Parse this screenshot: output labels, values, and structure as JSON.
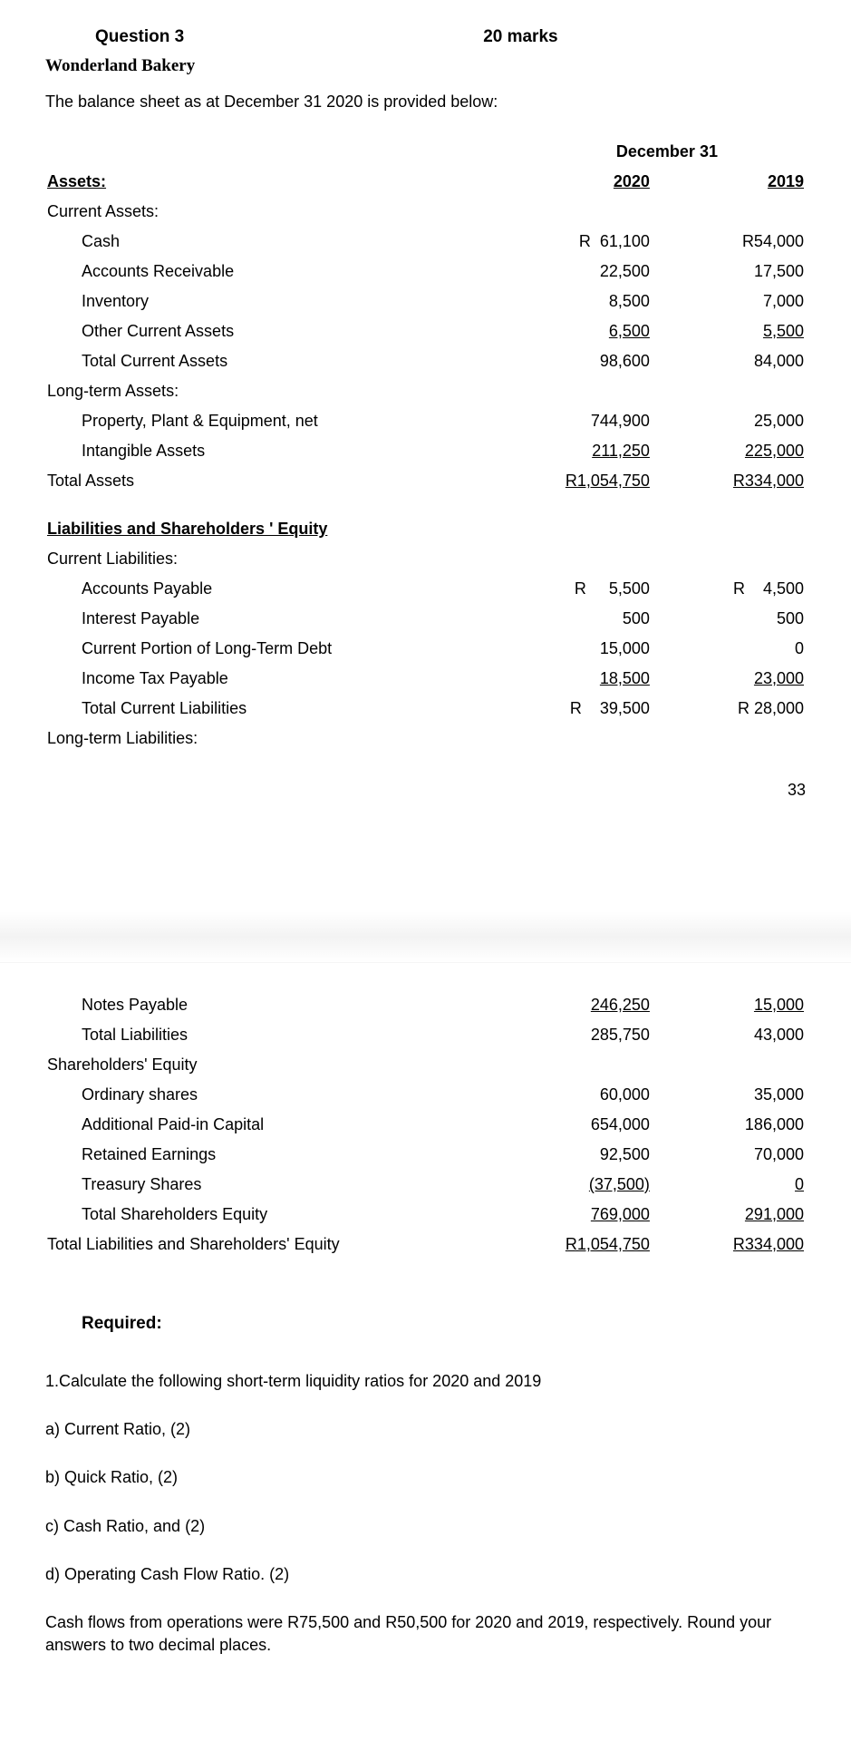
{
  "header": {
    "question": "Question 3",
    "marks": "20 marks",
    "company": "Wonderland Bakery",
    "intro": "The balance sheet as at December 31 2020 is provided below:"
  },
  "bs": {
    "date_header": "December 31",
    "year1": "2020",
    "year2": "2019",
    "assets_head": "Assets:",
    "curr_assets_head": "Current Assets:",
    "rows_ca": [
      {
        "label": "Cash",
        "v1": "R  61,100",
        "v2": "R54,000",
        "u": false
      },
      {
        "label": "Accounts Receivable",
        "v1": "22,500",
        "v2": "17,500",
        "u": false
      },
      {
        "label": "Inventory",
        "v1": "8,500",
        "v2": "7,000",
        "u": false
      },
      {
        "label": "Other Current Assets",
        "v1": "6,500",
        "v2": "5,500",
        "u": true
      },
      {
        "label": "Total Current Assets",
        "v1": "98,600",
        "v2": "84,000",
        "u": false
      }
    ],
    "lta_head": "Long-term Assets:",
    "rows_lta": [
      {
        "label": "Property, Plant & Equipment, net",
        "v1": "744,900",
        "v2": "25,000",
        "u": false
      },
      {
        "label": "Intangible Assets",
        "v1": "211,250",
        "v2": "225,000",
        "u": true
      }
    ],
    "total_assets": {
      "label": "Total Assets",
      "v1": "R1,054,750",
      "v2": "R334,000"
    },
    "lse_head": "Liabilities and Shareholders ' Equity",
    "curr_liab_head": "Current  Liabilities:",
    "rows_cl": [
      {
        "label": "Accounts Payable",
        "v1": "R     5,500",
        "v2": "R    4,500",
        "u": false
      },
      {
        "label": "Interest Payable",
        "v1": "500",
        "v2": "500",
        "u": false
      },
      {
        "label": "Current Portion of Long-Term Debt",
        "v1": "15,000",
        "v2": "0",
        "u": false
      },
      {
        "label": "Income Tax Payable",
        "v1": "18,500",
        "v2": "23,000",
        "u": true
      },
      {
        "label": "Total Current Liabilities",
        "v1": "R    39,500",
        "v2": "R 28,000",
        "u": false
      }
    ],
    "ltl_head": "Long-term Liabilities:",
    "rows_bottom": [
      {
        "label": "Notes Payable",
        "indent": true,
        "v1": "246,250",
        "v2": "15,000",
        "u": true
      },
      {
        "label": "Total Liabilities",
        "indent": true,
        "v1": "285,750",
        "v2": "43,000",
        "u": false
      }
    ],
    "se_head": "Shareholders' Equity",
    "rows_se": [
      {
        "label": "Ordinary shares",
        "v1": "60,000",
        "v2": "35,000",
        "u": false
      },
      {
        "label": "Additional Paid-in Capital",
        "v1": "654,000",
        "v2": "186,000",
        "u": false
      },
      {
        "label": "Retained Earnings",
        "v1": "92,500",
        "v2": "70,000",
        "u": false
      },
      {
        "label": "Treasury Shares",
        "v1": "(37,500)",
        "v2": "0",
        "u": true
      },
      {
        "label": "Total Shareholders Equity",
        "v1": "769,000",
        "v2": "291,000",
        "u": true
      }
    ],
    "total_lse": {
      "label": "Total Liabilities and Shareholders' Equity",
      "v1": "R1,054,750",
      "v2": "R334,000"
    }
  },
  "pagenum": "33",
  "required": {
    "head": "Required:",
    "lines": [
      "1.Calculate the following short-term liquidity ratios for 2020 and 2019",
      "a) Current Ratio, (2)",
      "b) Quick Ratio, (2)",
      "c) Cash Ratio, and (2)",
      "d) Operating Cash Flow Ratio. (2)",
      "Cash flows from operations were R75,500 and R50,500 for 2020 and 2019, respectively. Round your answers to two decimal places."
    ]
  }
}
